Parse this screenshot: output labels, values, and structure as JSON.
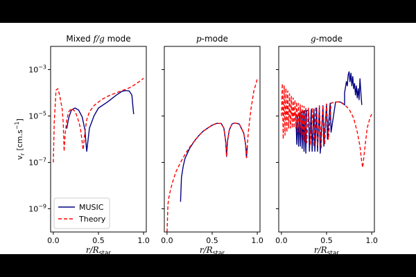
{
  "chart_data": {
    "type": "line",
    "shared_y": {
      "label": "v_r [cm.s^-1]",
      "scale": "log",
      "ylim": [
        1e-10,
        0.01
      ],
      "ticks": [
        1e-09,
        1e-07,
        1e-05,
        0.001
      ],
      "tick_labels": [
        "10^-9",
        "10^-7",
        "10^-5",
        "10^-3"
      ]
    },
    "xlabel": "r/R_star",
    "x_ticks": [
      0.0,
      0.5,
      1.0
    ],
    "x_tick_labels": [
      "0.0",
      "0.5",
      "1.0"
    ],
    "xlim": [
      -0.03,
      1.03
    ],
    "legend": {
      "placement": "lower-left",
      "entries": [
        "MUSIC",
        "Theory"
      ]
    },
    "colors": {
      "MUSIC": "#000080",
      "Theory": "#ff0000"
    },
    "panels": [
      {
        "title_prefix": "Mixed ",
        "title_math": "f/g",
        "title_suffix": " mode",
        "series": [
          {
            "name": "MUSIC",
            "x": [
              0.14,
              0.15,
              0.17,
              0.2,
              0.24,
              0.28,
              0.32,
              0.35,
              0.36,
              0.37,
              0.4,
              0.45,
              0.5,
              0.6,
              0.7,
              0.76,
              0.8,
              0.84,
              0.87,
              0.88,
              0.89
            ],
            "y": [
              3e-06,
              3e-06,
              8e-06,
              1.8e-05,
              2.2e-05,
              1.8e-05,
              9e-06,
              2.5e-06,
              8e-07,
              3e-07,
              3e-06,
              1e-05,
              2.2e-05,
              4e-05,
              8e-05,
              0.000115,
              0.000125,
              0.00012,
              8e-05,
              3e-05,
              1.2e-05
            ]
          },
          {
            "name": "Theory",
            "x": [
              0.0,
              0.01,
              0.03,
              0.05,
              0.07,
              0.09,
              0.1,
              0.11,
              0.12,
              0.13,
              0.15,
              0.17,
              0.2,
              0.24,
              0.27,
              0.3,
              0.33,
              0.35,
              0.37,
              0.4,
              0.45,
              0.5,
              0.55,
              0.6,
              0.65,
              0.7,
              0.75,
              0.8,
              0.85,
              0.9,
              0.95,
              1.0
            ],
            "y": [
              1e-07,
              5e-06,
              0.00013,
              0.00015,
              8e-05,
              3e-05,
              1.8e-05,
              5e-06,
              3e-07,
              1.5e-06,
              7e-06,
              1.5e-05,
              2.1e-05,
              1.6e-05,
              8e-06,
              3e-06,
              3.5e-07,
              2e-06,
              7e-06,
              1.5e-05,
              2.8e-05,
              4e-05,
              5.5e-05,
              7e-05,
              8.5e-05,
              0.0001,
              0.00012,
              0.00014,
              0.00017,
              0.00022,
              0.0003,
              0.00042
            ]
          }
        ]
      },
      {
        "title_prefix": "",
        "title_math": "p",
        "title_suffix": "-mode",
        "series": [
          {
            "name": "MUSIC",
            "x": [
              0.15,
              0.16,
              0.18,
              0.2,
              0.25,
              0.3,
              0.35,
              0.4,
              0.45,
              0.5,
              0.55,
              0.6,
              0.63,
              0.65,
              0.66,
              0.67,
              0.69,
              0.72,
              0.75,
              0.8,
              0.85,
              0.87,
              0.88,
              0.89
            ],
            "y": [
              2e-09,
              2.2e-08,
              7e-08,
              1.5e-07,
              4e-07,
              8e-07,
              1.4e-06,
              2.2e-06,
              3e-06,
              4e-06,
              4.8e-06,
              4.8e-06,
              3e-06,
              8e-07,
              1.8e-07,
              8e-07,
              2.5e-06,
              4.5e-06,
              5e-06,
              4.5e-06,
              1.8e-06,
              6e-07,
              1.6e-07,
              5e-07
            ]
          },
          {
            "name": "Theory",
            "x": [
              0.0,
              0.005,
              0.01,
              0.02,
              0.04,
              0.07,
              0.1,
              0.15,
              0.2,
              0.25,
              0.3,
              0.35,
              0.4,
              0.45,
              0.5,
              0.55,
              0.6,
              0.63,
              0.65,
              0.66,
              0.67,
              0.69,
              0.72,
              0.75,
              0.8,
              0.85,
              0.87,
              0.88,
              0.9,
              0.93,
              0.96,
              1.0
            ],
            "y": [
              1e-10,
              4e-10,
              1.5e-09,
              3e-09,
              7e-09,
              1.8e-08,
              4e-08,
              1e-07,
              2.2e-07,
              4.5e-07,
              8e-07,
              1.4e-06,
              2.2e-06,
              3e-06,
              4e-06,
              4.8e-06,
              4.8e-06,
              3e-06,
              8e-07,
              1.8e-07,
              8e-07,
              2.5e-06,
              4.5e-06,
              5e-06,
              4.5e-06,
              1.8e-06,
              6e-07,
              1.6e-07,
              2e-06,
              2e-05,
              0.00011,
              0.0004
            ]
          }
        ]
      },
      {
        "title_prefix": "",
        "title_math": "g",
        "title_suffix": "-mode",
        "series": [
          {
            "name": "MUSIC",
            "x": [
              0.16,
              0.17,
              0.18,
              0.19,
              0.2,
              0.21,
              0.22,
              0.23,
              0.24,
              0.25,
              0.26,
              0.27,
              0.28,
              0.3,
              0.31,
              0.33,
              0.34,
              0.36,
              0.37,
              0.39,
              0.4,
              0.42,
              0.43,
              0.46,
              0.47,
              0.5,
              0.51,
              0.54,
              0.55,
              0.6,
              0.65,
              0.68,
              0.7,
              0.7,
              0.72,
              0.73,
              0.74,
              0.75,
              0.76,
              0.77,
              0.78,
              0.79,
              0.8,
              0.81,
              0.82,
              0.83,
              0.84,
              0.85,
              0.86,
              0.87,
              0.88,
              0.89
            ],
            "y": [
              1.2e-05,
              6e-07,
              1e-05,
              5e-07,
              1.3e-05,
              5e-07,
              1.5e-05,
              4e-07,
              1.6e-05,
              3e-07,
              1.7e-05,
              2.5e-07,
              1.7e-05,
              1.8e-05,
              3e-07,
              1.9e-05,
              3e-07,
              2e-05,
              3e-07,
              2.2e-05,
              3e-07,
              2.4e-05,
              2.5e-07,
              2.8e-05,
              5e-07,
              3.2e-05,
              1e-06,
              3.6e-05,
              2e-06,
              4e-05,
              4e-05,
              3.5e-05,
              3e-05,
              0.0001,
              0.0003,
              0.0002,
              0.0006,
              0.0008,
              0.0003,
              0.0007,
              0.0002,
              0.0005,
              0.00015,
              0.00025,
              8e-05,
              0.0002,
              6e-05,
              0.00015,
              5e-05,
              0.0004,
              0.0001,
              3e-05
            ]
          },
          {
            "name": "Theory",
            "x": [
              0.0,
              0.01,
              0.02,
              0.03,
              0.04,
              0.05,
              0.06,
              0.07,
              0.08,
              0.09,
              0.1,
              0.11,
              0.12,
              0.13,
              0.14,
              0.15,
              0.16,
              0.17,
              0.18,
              0.19,
              0.2,
              0.21,
              0.22,
              0.23,
              0.24,
              0.25,
              0.26,
              0.27,
              0.28,
              0.3,
              0.32,
              0.34,
              0.36,
              0.38,
              0.4,
              0.42,
              0.44,
              0.46,
              0.48,
              0.5,
              0.52,
              0.55,
              0.6,
              0.65,
              0.7,
              0.75,
              0.8,
              0.84,
              0.87,
              0.89,
              0.9,
              0.92,
              0.95,
              0.98,
              1.0
            ],
            "y": [
              1e-05,
              0.00025,
              1e-06,
              0.0002,
              1.5e-06,
              0.00016,
              2e-06,
              0.00012,
              3e-06,
              9e-05,
              3e-06,
              7e-05,
              3e-06,
              6e-05,
              3e-06,
              5e-05,
              3e-06,
              4e-05,
              2e-06,
              3.5e-05,
              2e-06,
              3e-05,
              1.5e-06,
              2.8e-05,
              1e-06,
              2.6e-05,
              8e-07,
              2.4e-05,
              7e-07,
              2.2e-05,
              6e-07,
              2.3e-05,
              5e-07,
              2.5e-05,
              5e-07,
              2.8e-05,
              4e-07,
              3e-05,
              6e-07,
              3.3e-05,
              1e-06,
              3.6e-05,
              4e-05,
              4e-05,
              3e-05,
              2e-05,
              8e-06,
              2e-06,
              5e-07,
              1e-07,
              6e-08,
              3e-07,
              3e-06,
              8e-06,
              1.2e-05
            ]
          }
        ]
      }
    ]
  }
}
